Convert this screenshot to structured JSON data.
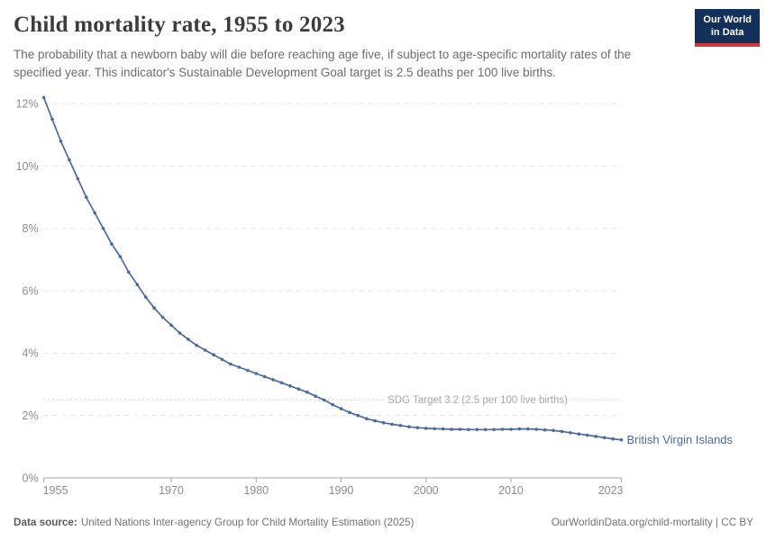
{
  "header": {
    "title": "Child mortality rate, 1955 to 2023",
    "subtitle": "The probability that a newborn baby will die before reaching age five, if subject to age-specific mortality rates of the specified year. This indicator's Sustainable Development Goal target is 2.5 deaths per 100 live births.",
    "logo": {
      "line1": "Our World",
      "line2": "in Data",
      "bg_color": "#12305a",
      "accent_color": "#d4383c"
    }
  },
  "chart_data": {
    "type": "line",
    "title": "Child mortality rate, 1955 to 2023",
    "xlabel": "",
    "ylabel": "",
    "xlim": [
      1955,
      2023
    ],
    "ylim": [
      0,
      12.5
    ],
    "grid": "dashed-horizontal",
    "legend_position": "end-of-line-label",
    "x_ticks": [
      {
        "v": 1955,
        "label": "1955"
      },
      {
        "v": 1970,
        "label": "1970"
      },
      {
        "v": 1980,
        "label": "1980"
      },
      {
        "v": 1990,
        "label": "1990"
      },
      {
        "v": 2000,
        "label": "2000"
      },
      {
        "v": 2010,
        "label": "2010"
      },
      {
        "v": 2023,
        "label": "2023"
      }
    ],
    "y_ticks": [
      {
        "v": 0,
        "label": "0%"
      },
      {
        "v": 2,
        "label": "2%"
      },
      {
        "v": 4,
        "label": "4%"
      },
      {
        "v": 6,
        "label": "6%"
      },
      {
        "v": 8,
        "label": "8%"
      },
      {
        "v": 10,
        "label": "10%"
      },
      {
        "v": 12,
        "label": "12%"
      }
    ],
    "annotation": {
      "label": "SDG Target 3.2 (2.5 per 100 live births)",
      "value": 2.5,
      "line_color": "#c6c6c6",
      "text_color": "#a6a6a6"
    },
    "series": [
      {
        "name": "British Virgin Islands",
        "color": "#4C6A9C",
        "x": [
          1955,
          1956,
          1957,
          1958,
          1959,
          1960,
          1961,
          1962,
          1963,
          1964,
          1965,
          1966,
          1967,
          1968,
          1969,
          1970,
          1971,
          1972,
          1973,
          1974,
          1975,
          1976,
          1977,
          1978,
          1979,
          1980,
          1981,
          1982,
          1983,
          1984,
          1985,
          1986,
          1987,
          1988,
          1989,
          1990,
          1991,
          1992,
          1993,
          1994,
          1995,
          1996,
          1997,
          1998,
          1999,
          2000,
          2001,
          2002,
          2003,
          2004,
          2005,
          2006,
          2007,
          2008,
          2009,
          2010,
          2011,
          2012,
          2013,
          2014,
          2015,
          2016,
          2017,
          2018,
          2019,
          2020,
          2021,
          2022,
          2023
        ],
        "values": [
          12.2,
          11.5,
          10.8,
          10.2,
          9.6,
          9.0,
          8.5,
          8.0,
          7.5,
          7.1,
          6.6,
          6.2,
          5.8,
          5.45,
          5.15,
          4.9,
          4.65,
          4.45,
          4.25,
          4.1,
          3.95,
          3.8,
          3.65,
          3.55,
          3.45,
          3.35,
          3.25,
          3.15,
          3.05,
          2.95,
          2.85,
          2.75,
          2.62,
          2.5,
          2.35,
          2.22,
          2.1,
          2.0,
          1.9,
          1.83,
          1.77,
          1.72,
          1.68,
          1.64,
          1.61,
          1.59,
          1.58,
          1.57,
          1.56,
          1.56,
          1.55,
          1.55,
          1.55,
          1.55,
          1.56,
          1.56,
          1.57,
          1.57,
          1.56,
          1.54,
          1.52,
          1.49,
          1.45,
          1.41,
          1.37,
          1.33,
          1.29,
          1.25,
          1.22
        ]
      }
    ],
    "axis_color": "#a5a5a5",
    "grid_color": "#e2e2e2",
    "tick_label_color": "#8c8c8c"
  },
  "footer": {
    "source_label": "Data source:",
    "source_value": "United Nations Inter-agency Group for Child Mortality Estimation (2025)",
    "license": "OurWorldinData.org/child-mortality | CC BY"
  }
}
